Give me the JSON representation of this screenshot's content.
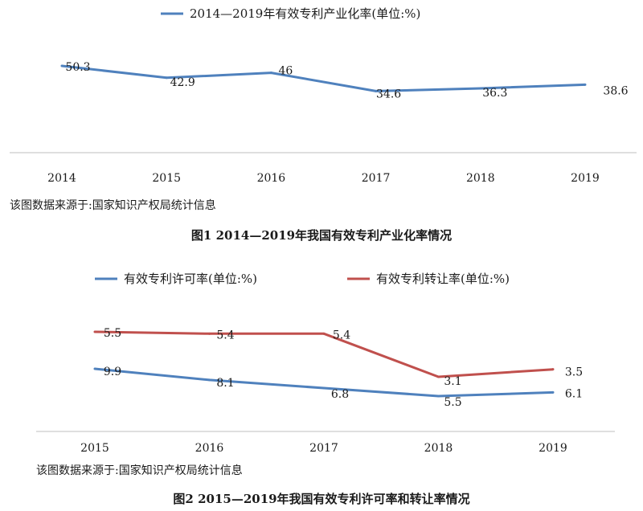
{
  "chart_data": [
    {
      "type": "line",
      "title": "",
      "caption": "图1   2014—2019年我国有效专利产业化率情况",
      "source": "该图数据来源于:国家知识产权局统计信息",
      "categories": [
        "2014",
        "2015",
        "2016",
        "2017",
        "2018",
        "2019"
      ],
      "series": [
        {
          "name": "2014—2019年有效专利产业化率(单位:%)",
          "values": [
            50.3,
            42.9,
            46,
            34.6,
            36.3,
            38.6
          ],
          "labels": [
            "50.3",
            "42.9",
            "46",
            "34.6",
            "36.3",
            "38.6"
          ],
          "color": "#4f81bd"
        }
      ],
      "xlabel": "",
      "ylabel": "",
      "ylim": [
        30,
        55
      ],
      "grid": false,
      "legend": "top-center"
    },
    {
      "type": "line",
      "title": "",
      "caption": "图2   2015—2019年我国有效专利许可率和转让率情况",
      "source": "该图数据来源于:国家知识产权局统计信息",
      "categories": [
        "2015",
        "2016",
        "2017",
        "2018",
        "2019"
      ],
      "series": [
        {
          "name": "有效专利许可率(单位:%)",
          "values": [
            9.9,
            8.1,
            6.8,
            5.5,
            6.1
          ],
          "labels": [
            "9.9",
            "8.1",
            "6.8",
            "5.5",
            "6.1"
          ],
          "color": "#4f81bd"
        },
        {
          "name": "有效专利转让率(单位:%)",
          "values": [
            5.5,
            5.4,
            5.4,
            3.1,
            3.5
          ],
          "labels": [
            "5.5",
            "5.4",
            "5.4",
            "3.1",
            "3.5"
          ],
          "color": "#c0504d"
        }
      ],
      "xlabel": "",
      "ylabel": "",
      "grid": false,
      "legend": "top-center"
    }
  ]
}
